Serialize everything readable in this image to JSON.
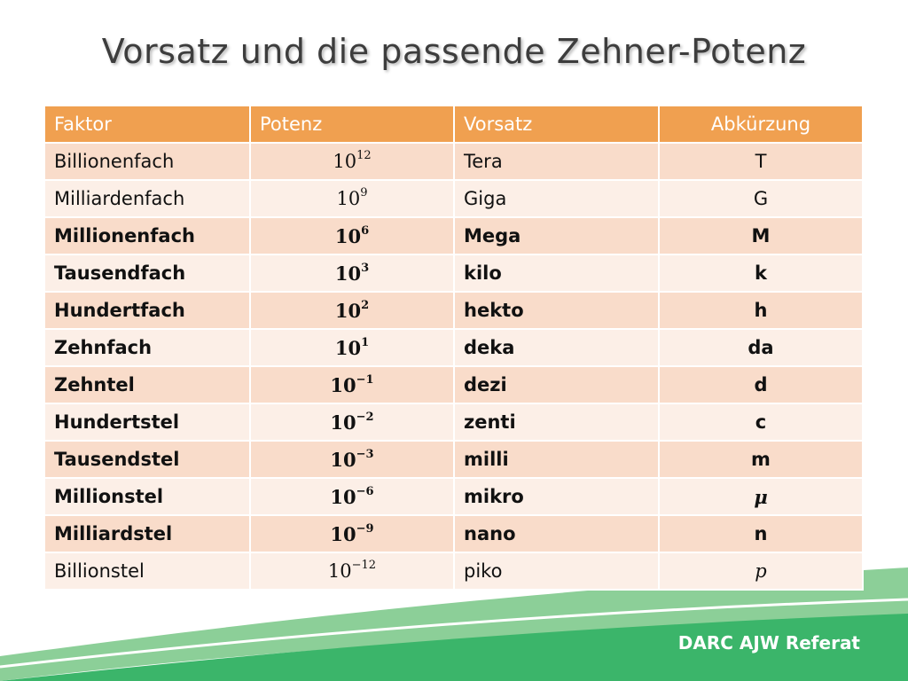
{
  "title": "Vorsatz und die passende Zehner-Potenz",
  "table": {
    "headers": [
      "Faktor",
      "Potenz",
      "Vorsatz",
      "Abkürzung"
    ],
    "rows": [
      {
        "factor": "Billionenfach",
        "base": "10",
        "exp": "12",
        "prefix": "Tera",
        "abbr": "T",
        "bold": false
      },
      {
        "factor": "Milliardenfach",
        "base": "10",
        "exp": "9",
        "prefix": "Giga",
        "abbr": "G",
        "bold": false
      },
      {
        "factor": "Millionenfach",
        "base": "10",
        "exp": "6",
        "prefix": "Mega",
        "abbr": "M",
        "bold": true
      },
      {
        "factor": "Tausendfach",
        "base": "10",
        "exp": "3",
        "prefix": "kilo",
        "abbr": "k",
        "bold": true
      },
      {
        "factor": "Hundertfach",
        "base": "10",
        "exp": "2",
        "prefix": "hekto",
        "abbr": "h",
        "bold": true
      },
      {
        "factor": "Zehnfach",
        "base": "10",
        "exp": "1",
        "prefix": "deka",
        "abbr": "da",
        "bold": true
      },
      {
        "factor": "Zehntel",
        "base": "10",
        "exp": "−1",
        "prefix": "dezi",
        "abbr": "d",
        "bold": true
      },
      {
        "factor": "Hundertstel",
        "base": "10",
        "exp": "−2",
        "prefix": "zenti",
        "abbr": "c",
        "bold": true
      },
      {
        "factor": "Tausendstel",
        "base": "10",
        "exp": "−3",
        "prefix": "milli",
        "abbr": "m",
        "bold": true
      },
      {
        "factor": "Millionstel",
        "base": "10",
        "exp": "−6",
        "prefix": "mikro",
        "abbr": "μ",
        "bold": true,
        "abbr_italic": true
      },
      {
        "factor": "Milliardstel",
        "base": "10",
        "exp": "−9",
        "prefix": "nano",
        "abbr": "n",
        "bold": true
      },
      {
        "factor": "Billionstel",
        "base": "10",
        "exp": "−12",
        "prefix": "piko",
        "abbr": "p",
        "bold": false,
        "abbr_italic": true
      }
    ]
  },
  "footer": "DARC AJW Referat",
  "colors": {
    "header": "#f0a050",
    "row_dark": "#f9dcca",
    "row_light": "#fcefe7",
    "wave_green": "#3bb56a",
    "wave_light": "#8ccf98"
  }
}
